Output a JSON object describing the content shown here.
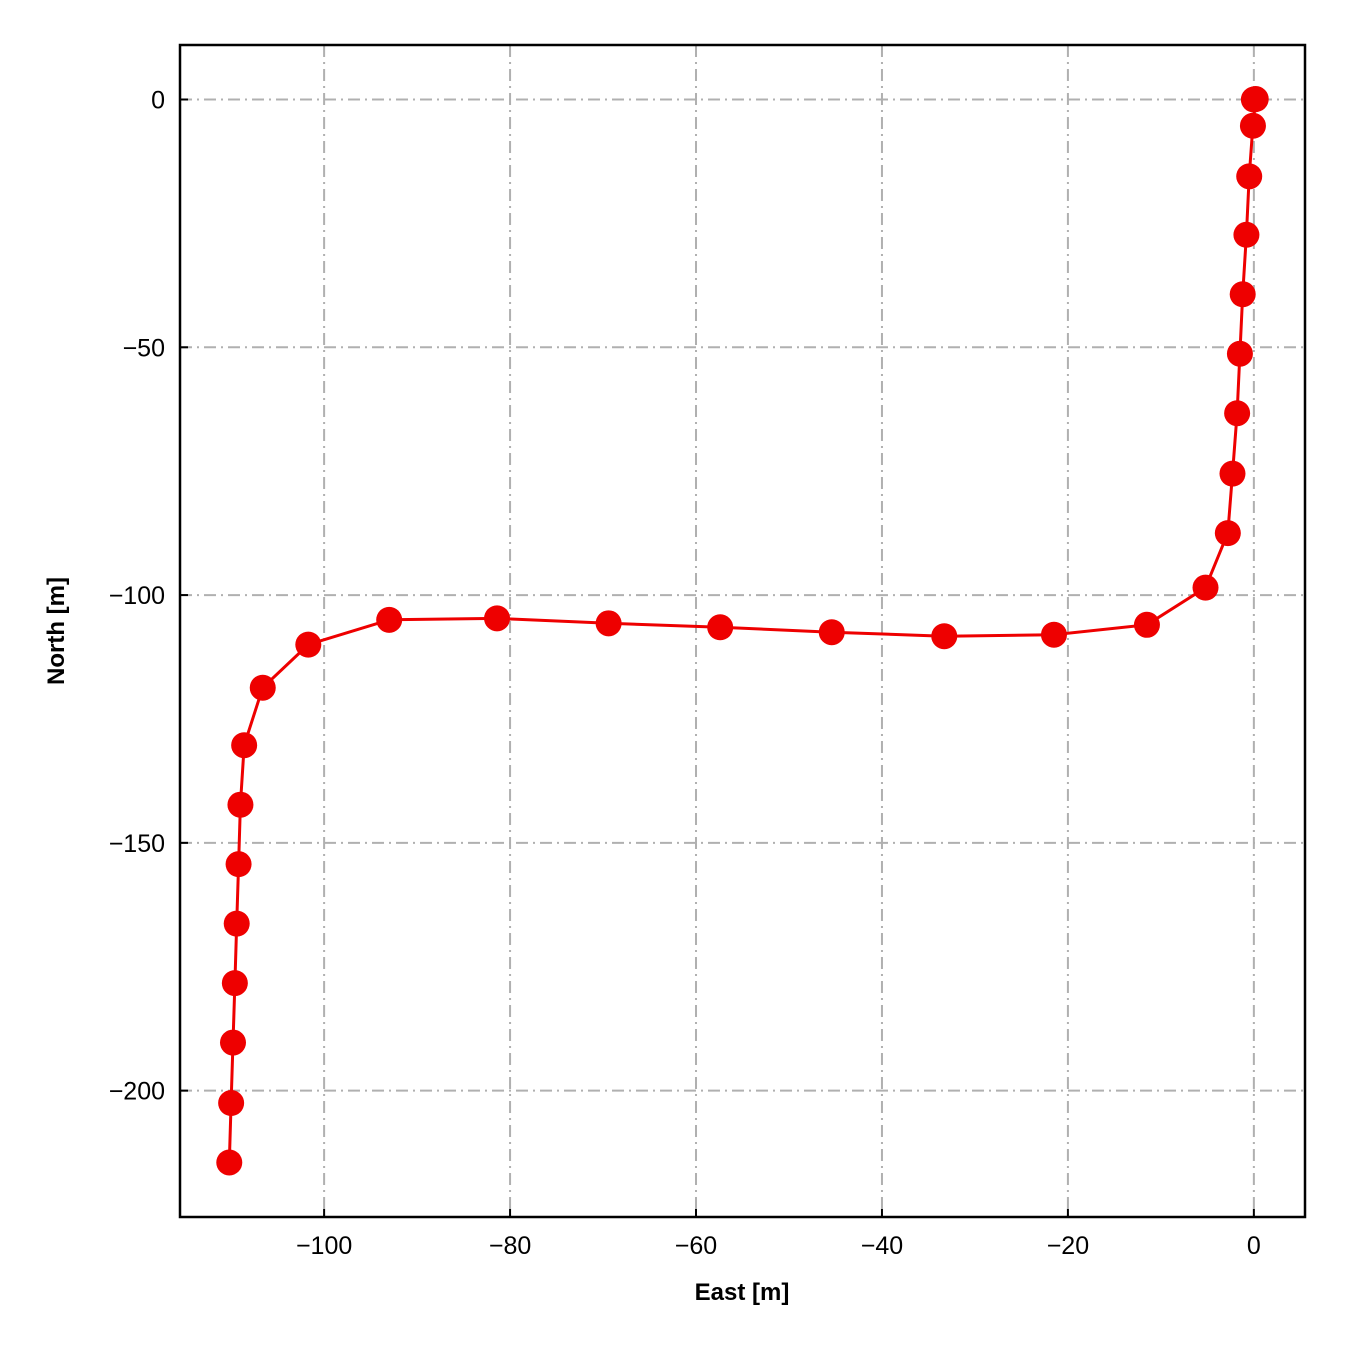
{
  "chart_data": {
    "type": "line",
    "xlabel": "East [m]",
    "ylabel": "North [m]",
    "xlim": [
      -115.5,
      5.5
    ],
    "ylim": [
      -225.5,
      11
    ],
    "xticks": [
      -100,
      -80,
      -60,
      -40,
      -20,
      0
    ],
    "yticks": [
      0,
      -50,
      -100,
      -150,
      -200
    ],
    "xtick_labels": [
      "−100",
      "−80",
      "−60",
      "−40",
      "−20",
      "0"
    ],
    "ytick_labels": [
      "0",
      "−50",
      "−100",
      "−150",
      "−200"
    ],
    "grid": true,
    "series": [
      {
        "color": "#ee0000",
        "marker": "circle",
        "x": [
          0.0,
          0.2,
          -0.1,
          -0.5,
          -0.8,
          -1.2,
          -1.5,
          -1.8,
          -2.3,
          -2.8,
          -5.2,
          -11.5,
          -21.5,
          -33.3,
          -45.4,
          -57.4,
          -69.4,
          -81.4,
          -93.0,
          -101.7,
          -106.6,
          -108.6,
          -109.0,
          -109.2,
          -109.4,
          -109.6,
          -109.8,
          -110.0,
          -110.2
        ],
        "y": [
          0.0,
          0.1,
          -5.3,
          -15.5,
          -27.3,
          -39.3,
          -51.3,
          -63.3,
          -75.5,
          -87.5,
          -98.5,
          -106.0,
          -108.0,
          -108.3,
          -107.5,
          -106.5,
          -105.7,
          -104.7,
          -105.0,
          -110.0,
          -118.7,
          -130.3,
          -142.3,
          -154.3,
          -166.3,
          -178.3,
          -190.3,
          -202.5,
          -214.5
        ]
      }
    ]
  }
}
